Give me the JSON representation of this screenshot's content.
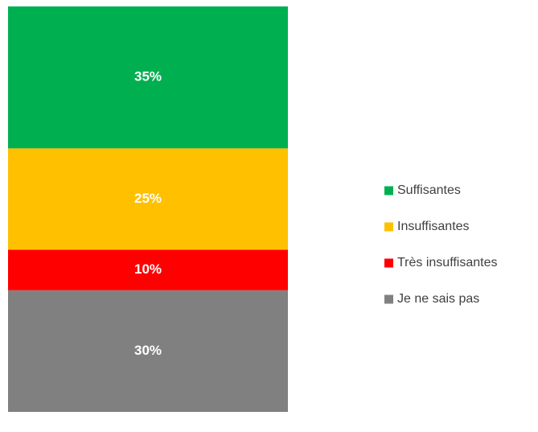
{
  "chart_data": {
    "type": "stacked_bar",
    "ylim": [
      0,
      100
    ],
    "series": [
      {
        "name": "Suffisantes",
        "color": "#00b050",
        "values": [
          35
        ],
        "value_labels": [
          "35%"
        ]
      },
      {
        "name": "Insuffisantes",
        "color": "#ffc000",
        "values": [
          25
        ],
        "value_labels": [
          "25%"
        ]
      },
      {
        "name": "Très insuffisantes",
        "color": "#ff0000",
        "values": [
          10
        ],
        "value_labels": [
          "10%"
        ]
      },
      {
        "name": "Je ne sais pas",
        "color": "#808080",
        "values": [
          30
        ],
        "value_labels": [
          "30%"
        ]
      }
    ]
  }
}
